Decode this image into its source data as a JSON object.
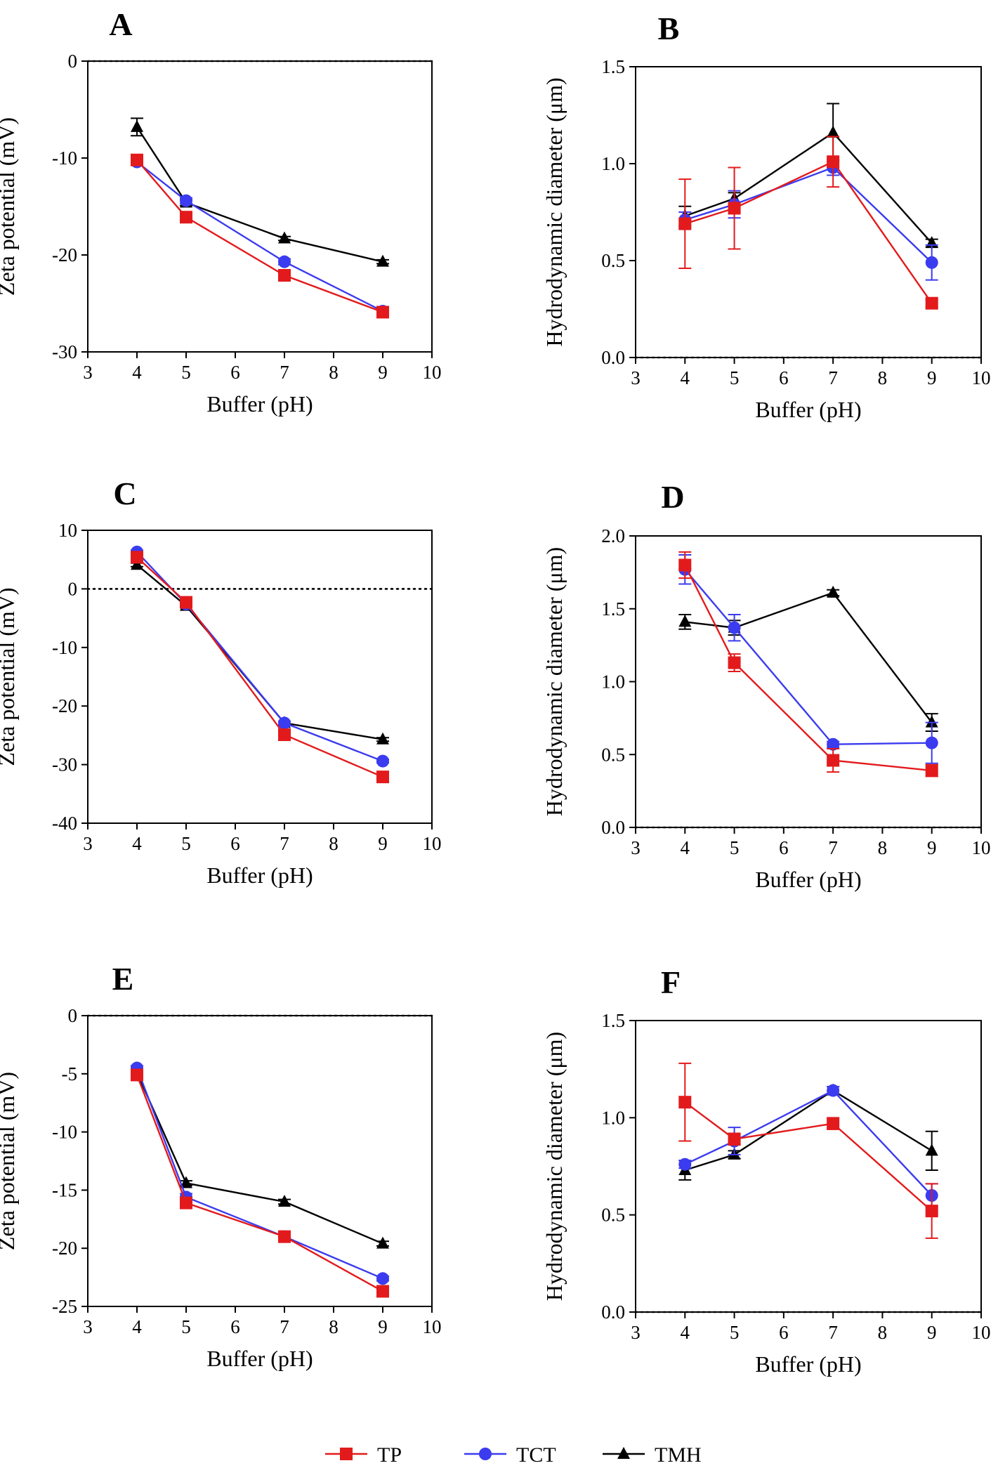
{
  "legend": [
    {
      "name": "TP",
      "color": "#e31a1c",
      "marker": "square"
    },
    {
      "name": "TCT",
      "color": "#3b3bef",
      "marker": "circle"
    },
    {
      "name": "TMH",
      "color": "#000000",
      "marker": "triangle"
    }
  ],
  "chart_data": [
    {
      "panel": "A",
      "type": "line",
      "xlabel": "Buffer (pH)",
      "ylabel": "Zeta potential (mV)",
      "xlim": [
        3,
        10
      ],
      "ylim": [
        -30,
        0
      ],
      "xticks": [
        3,
        4,
        5,
        6,
        7,
        8,
        9,
        10
      ],
      "yticks": [
        -30,
        -20,
        -10,
        0
      ],
      "reference_line": 0,
      "x": [
        4,
        5,
        7,
        9
      ],
      "series": [
        {
          "name": "TP",
          "values": [
            -10.2,
            -16.1,
            -22.1,
            -25.9
          ],
          "errors": [
            0.2,
            0.2,
            0.3,
            0.2
          ]
        },
        {
          "name": "TCT",
          "values": [
            -10.4,
            -14.4,
            -20.7,
            -25.8
          ],
          "errors": [
            0.2,
            0.3,
            0.3,
            0.2
          ]
        },
        {
          "name": "TMH",
          "values": [
            -6.8,
            -14.6,
            -18.3,
            -20.7
          ],
          "errors": [
            0.9,
            0.3,
            0.2,
            0.2
          ]
        }
      ]
    },
    {
      "panel": "B",
      "type": "line",
      "xlabel": "Buffer (pH)",
      "ylabel": "Hydrodynamic diameter (μm)",
      "xlim": [
        3,
        10
      ],
      "ylim": [
        0,
        1.5
      ],
      "xticks": [
        3,
        4,
        5,
        6,
        7,
        8,
        9,
        10
      ],
      "yticks": [
        0.0,
        0.5,
        1.0,
        1.5
      ],
      "reference_line": 0,
      "x": [
        4,
        5,
        7,
        9
      ],
      "series": [
        {
          "name": "TP",
          "values": [
            0.69,
            0.77,
            1.01,
            0.28
          ],
          "errors": [
            0.23,
            0.21,
            0.13,
            0.02
          ]
        },
        {
          "name": "TCT",
          "values": [
            0.71,
            0.79,
            0.98,
            0.49
          ],
          "errors": [
            0.04,
            0.07,
            0.04,
            0.09
          ]
        },
        {
          "name": "TMH",
          "values": [
            0.73,
            0.82,
            1.16,
            0.59
          ],
          "errors": [
            0.05,
            0.03,
            0.15,
            0.02
          ]
        }
      ]
    },
    {
      "panel": "C",
      "type": "line",
      "xlabel": "Buffer (pH)",
      "ylabel": "Zeta potential (mV)",
      "xlim": [
        3,
        10
      ],
      "ylim": [
        -40,
        10
      ],
      "xticks": [
        3,
        4,
        5,
        6,
        7,
        8,
        9,
        10
      ],
      "yticks": [
        -40,
        -30,
        -20,
        -10,
        0,
        10
      ],
      "reference_line": 0,
      "x": [
        4,
        5,
        7,
        9
      ],
      "series": [
        {
          "name": "TP",
          "values": [
            5.4,
            -2.3,
            -24.9,
            -32.1
          ],
          "errors": [
            0.4,
            0.3,
            0.3,
            0.3
          ]
        },
        {
          "name": "TCT",
          "values": [
            6.3,
            -2.6,
            -22.9,
            -29.4
          ],
          "errors": [
            0.3,
            0.3,
            0.3,
            0.3
          ]
        },
        {
          "name": "TMH",
          "values": [
            4.1,
            -2.9,
            -22.9,
            -25.7
          ],
          "errors": [
            0.3,
            0.3,
            0.3,
            0.3
          ]
        }
      ]
    },
    {
      "panel": "D",
      "type": "line",
      "xlabel": "Buffer (pH)",
      "ylabel": "Hydrodynamic diameter (μm)",
      "xlim": [
        3,
        10
      ],
      "ylim": [
        0,
        2.0
      ],
      "xticks": [
        3,
        4,
        5,
        6,
        7,
        8,
        9,
        10
      ],
      "yticks": [
        0.0,
        0.5,
        1.0,
        1.5,
        2.0
      ],
      "reference_line": 0,
      "x": [
        4,
        5,
        7,
        9
      ],
      "series": [
        {
          "name": "TP",
          "values": [
            1.8,
            1.13,
            0.46,
            0.39
          ],
          "errors": [
            0.09,
            0.06,
            0.08,
            0.04
          ]
        },
        {
          "name": "TCT",
          "values": [
            1.77,
            1.37,
            0.57,
            0.58
          ],
          "errors": [
            0.1,
            0.09,
            0.02,
            0.14
          ]
        },
        {
          "name": "TMH",
          "values": [
            1.41,
            1.37,
            1.61,
            0.72
          ],
          "errors": [
            0.05,
            0.05,
            0.02,
            0.06
          ]
        }
      ]
    },
    {
      "panel": "E",
      "type": "line",
      "xlabel": "Buffer (pH)",
      "ylabel": "Zeta potential (mV)",
      "xlim": [
        3,
        10
      ],
      "ylim": [
        -25,
        0
      ],
      "xticks": [
        3,
        4,
        5,
        6,
        7,
        8,
        9,
        10
      ],
      "yticks": [
        -25,
        -20,
        -15,
        -10,
        -5,
        0
      ],
      "reference_line": 0,
      "x": [
        4,
        5,
        7,
        9
      ],
      "series": [
        {
          "name": "TP",
          "values": [
            -5.1,
            -16.1,
            -19.0,
            -23.7
          ],
          "errors": [
            0.3,
            0.3,
            0.2,
            0.2
          ]
        },
        {
          "name": "TCT",
          "values": [
            -4.5,
            -15.6,
            -19.0,
            -22.6
          ],
          "errors": [
            0.2,
            0.3,
            0.2,
            0.2
          ]
        },
        {
          "name": "TMH",
          "values": [
            -4.9,
            -14.4,
            -16.0,
            -19.6
          ],
          "errors": [
            0.2,
            0.2,
            0.2,
            0.2
          ]
        }
      ]
    },
    {
      "panel": "F",
      "type": "line",
      "xlabel": "Buffer (pH)",
      "ylabel": "Hydrodynamic diameter (μm)",
      "xlim": [
        3,
        10
      ],
      "ylim": [
        0,
        1.5
      ],
      "xticks": [
        3,
        4,
        5,
        6,
        7,
        8,
        9,
        10
      ],
      "yticks": [
        0.0,
        0.5,
        1.0,
        1.5
      ],
      "reference_line": 0,
      "x": [
        4,
        5,
        7,
        9
      ],
      "series": [
        {
          "name": "TP",
          "values": [
            1.08,
            0.89,
            0.97,
            0.52
          ],
          "errors": [
            0.2,
            0.03,
            0.03,
            0.14
          ]
        },
        {
          "name": "TCT",
          "values": [
            0.76,
            0.88,
            1.14,
            0.6
          ],
          "errors": [
            0.02,
            0.07,
            0.02,
            0.06
          ]
        },
        {
          "name": "TMH",
          "values": [
            0.73,
            0.81,
            1.14,
            0.83
          ],
          "errors": [
            0.05,
            0.02,
            0.02,
            0.1
          ]
        }
      ]
    }
  ]
}
